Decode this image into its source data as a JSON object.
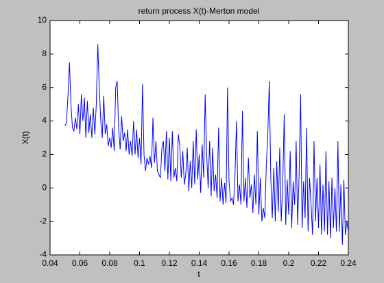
{
  "chart_data": {
    "type": "line",
    "title": "return process X(t)-Merton model",
    "xlabel": "t",
    "ylabel": "X(t)",
    "color": "#0000ff",
    "xlim": [
      0.04,
      0.24
    ],
    "xticks": [
      0.04,
      0.06,
      0.08,
      0.1,
      0.12,
      0.14,
      0.16,
      0.18,
      0.2,
      0.22,
      0.24
    ],
    "ylim": [
      -4,
      10
    ],
    "yticks": [
      -4,
      -2,
      0,
      2,
      4,
      6,
      8,
      10
    ],
    "grid": false,
    "x": [
      0.05,
      0.051,
      0.052,
      0.053,
      0.054,
      0.055,
      0.056,
      0.057,
      0.058,
      0.059,
      0.06,
      0.061,
      0.062,
      0.063,
      0.064,
      0.065,
      0.066,
      0.067,
      0.068,
      0.069,
      0.07,
      0.071,
      0.072,
      0.073,
      0.074,
      0.075,
      0.076,
      0.077,
      0.078,
      0.079,
      0.08,
      0.081,
      0.082,
      0.083,
      0.084,
      0.085,
      0.086,
      0.087,
      0.088,
      0.089,
      0.09,
      0.091,
      0.092,
      0.093,
      0.094,
      0.095,
      0.096,
      0.097,
      0.098,
      0.099,
      0.1,
      0.101,
      0.102,
      0.103,
      0.104,
      0.105,
      0.106,
      0.107,
      0.108,
      0.109,
      0.11,
      0.111,
      0.112,
      0.113,
      0.114,
      0.115,
      0.116,
      0.117,
      0.118,
      0.119,
      0.12,
      0.121,
      0.122,
      0.123,
      0.124,
      0.125,
      0.126,
      0.127,
      0.128,
      0.129,
      0.13,
      0.131,
      0.132,
      0.133,
      0.134,
      0.135,
      0.136,
      0.137,
      0.138,
      0.139,
      0.14,
      0.141,
      0.142,
      0.143,
      0.144,
      0.145,
      0.146,
      0.147,
      0.148,
      0.149,
      0.15,
      0.151,
      0.152,
      0.153,
      0.154,
      0.155,
      0.156,
      0.157,
      0.158,
      0.159,
      0.16,
      0.161,
      0.162,
      0.163,
      0.164,
      0.165,
      0.166,
      0.167,
      0.168,
      0.169,
      0.17,
      0.171,
      0.172,
      0.173,
      0.174,
      0.175,
      0.176,
      0.177,
      0.178,
      0.179,
      0.18,
      0.181,
      0.182,
      0.183,
      0.184,
      0.185,
      0.186,
      0.187,
      0.188,
      0.189,
      0.19,
      0.191,
      0.192,
      0.193,
      0.194,
      0.195,
      0.196,
      0.197,
      0.198,
      0.199,
      0.2,
      0.201,
      0.202,
      0.203,
      0.204,
      0.205,
      0.206,
      0.207,
      0.208,
      0.209,
      0.21,
      0.211,
      0.212,
      0.213,
      0.214,
      0.215,
      0.216,
      0.217,
      0.218,
      0.219,
      0.22,
      0.221,
      0.222,
      0.223,
      0.224,
      0.225,
      0.226,
      0.227,
      0.228,
      0.229,
      0.23,
      0.231,
      0.232,
      0.233,
      0.234,
      0.235,
      0.236,
      0.237,
      0.238,
      0.239,
      0.24
    ],
    "values": [
      3.7,
      3.9,
      5.5,
      7.5,
      5.0,
      3.6,
      3.4,
      4.2,
      3.5,
      5.0,
      3.2,
      5.6,
      4.0,
      5.4,
      3.0,
      5.2,
      3.3,
      4.4,
      3.0,
      4.8,
      3.2,
      5.0,
      8.6,
      6.0,
      4.0,
      3.0,
      5.5,
      3.2,
      3.8,
      2.5,
      3.0,
      2.4,
      3.6,
      2.2,
      6.0,
      6.4,
      3.5,
      2.3,
      4.3,
      2.8,
      3.3,
      2.2,
      3.5,
      2.0,
      2.8,
      1.9,
      4.0,
      2.0,
      3.5,
      1.8,
      3.0,
      1.4,
      6.2,
      2.0,
      1.0,
      1.8,
      1.4,
      1.9,
      1.2,
      4.2,
      1.5,
      2.8,
      1.0,
      0.8,
      0.6,
      2.4,
      2.8,
      1.0,
      3.4,
      0.5,
      3.0,
      0.4,
      3.4,
      0.6,
      1.2,
      0.4,
      3.2,
      2.5,
      0.6,
      2.2,
      0.2,
      0.8,
      2.4,
      -0.2,
      1.6,
      0.0,
      2.8,
      0.2,
      3.5,
      0.5,
      2.0,
      -0.3,
      2.6,
      0.6,
      5.6,
      2.0,
      0.0,
      2.8,
      -0.5,
      2.4,
      -0.2,
      0.8,
      -0.6,
      3.6,
      -0.8,
      0.6,
      -1.0,
      0.3,
      -0.9,
      6.0,
      0.4,
      -0.8,
      -0.6,
      -1.0,
      0.8,
      4.0,
      -0.8,
      0.2,
      -1.0,
      4.6,
      -0.8,
      0.6,
      -1.2,
      1.8,
      -0.6,
      0.2,
      -1.5,
      0.8,
      -1.0,
      3.4,
      -1.6,
      0.6,
      -2.0,
      -1.2,
      -1.8,
      1.4,
      3.2,
      6.4,
      0.6,
      -1.8,
      1.2,
      -2.0,
      1.6,
      -1.4,
      2.4,
      -2.0,
      0.2,
      4.4,
      -2.2,
      0.5,
      -1.6,
      2.2,
      -2.4,
      0.4,
      -1.0,
      2.8,
      -2.2,
      0.8,
      5.6,
      -2.4,
      0.4,
      -1.8,
      3.6,
      -2.6,
      0.6,
      -1.0,
      -2.8,
      2.8,
      -2.0,
      0.6,
      -2.4,
      1.4,
      -2.8,
      0.2,
      -2.6,
      2.2,
      -2.8,
      0.4,
      -3.0,
      0.6,
      -2.4,
      0.0,
      -2.6,
      2.8,
      -2.6,
      0.2,
      -3.4,
      0.5,
      -2.8,
      -2.0,
      -2.6
    ]
  }
}
